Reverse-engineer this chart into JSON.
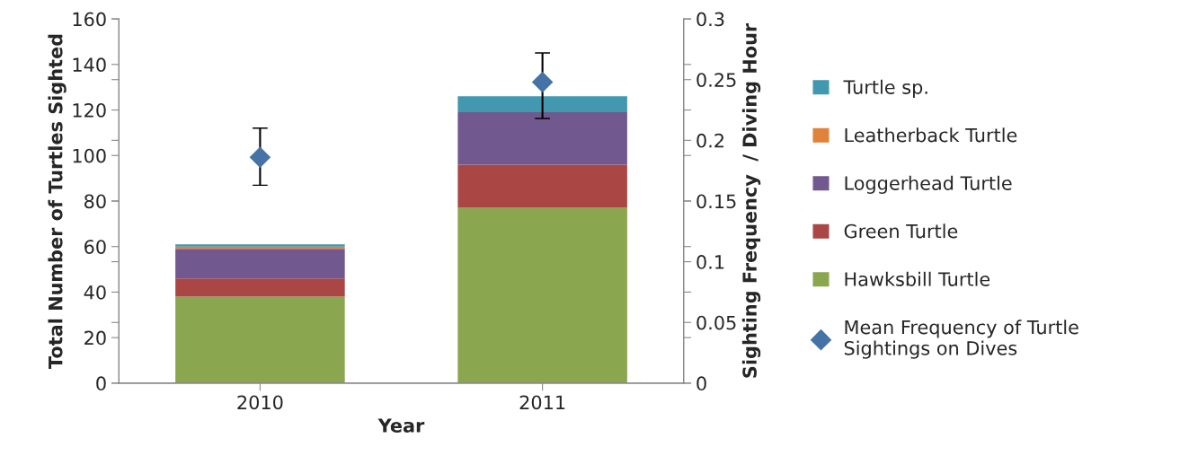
{
  "chart_data": {
    "type": "bar",
    "stacked": true,
    "xlabel": "Year",
    "ylabel": "Total Number of Turtles Sighted",
    "y2label": "Sighting Frequency  / Diving Hour",
    "categories": [
      "2010",
      "2011"
    ],
    "series": [
      {
        "name": "Hawksbill Turtle",
        "color": "#8aa64e",
        "values": [
          38,
          77
        ]
      },
      {
        "name": "Green Turtle",
        "color": "#aa4744",
        "values": [
          8,
          19
        ]
      },
      {
        "name": "Loggerhead Turtle",
        "color": "#71588f",
        "values": [
          13,
          23
        ]
      },
      {
        "name": "Leatherback Turtle",
        "color": "#e0823b",
        "values": [
          1,
          0
        ]
      },
      {
        "name": "Turtle sp.",
        "color": "#4198af",
        "values": [
          1,
          7
        ]
      },
      {
        "name": "Mean Frequency of Turtle Sightings on Dives",
        "type": "scatter",
        "axis": "y2",
        "marker": "diamond",
        "color": "#4573a7",
        "values": [
          0.186,
          0.248
        ],
        "errors": [
          [
            0.163,
            0.21
          ],
          [
            0.218,
            0.272
          ]
        ]
      }
    ],
    "ylim": [
      0,
      160
    ],
    "yticks": [
      0,
      20,
      40,
      60,
      80,
      100,
      120,
      140,
      160
    ],
    "y2lim": [
      0,
      0.3
    ],
    "y2ticks": [
      0,
      0.05,
      0.1,
      0.15,
      0.2,
      0.25,
      0.3
    ],
    "legend": "right",
    "grid": false
  }
}
